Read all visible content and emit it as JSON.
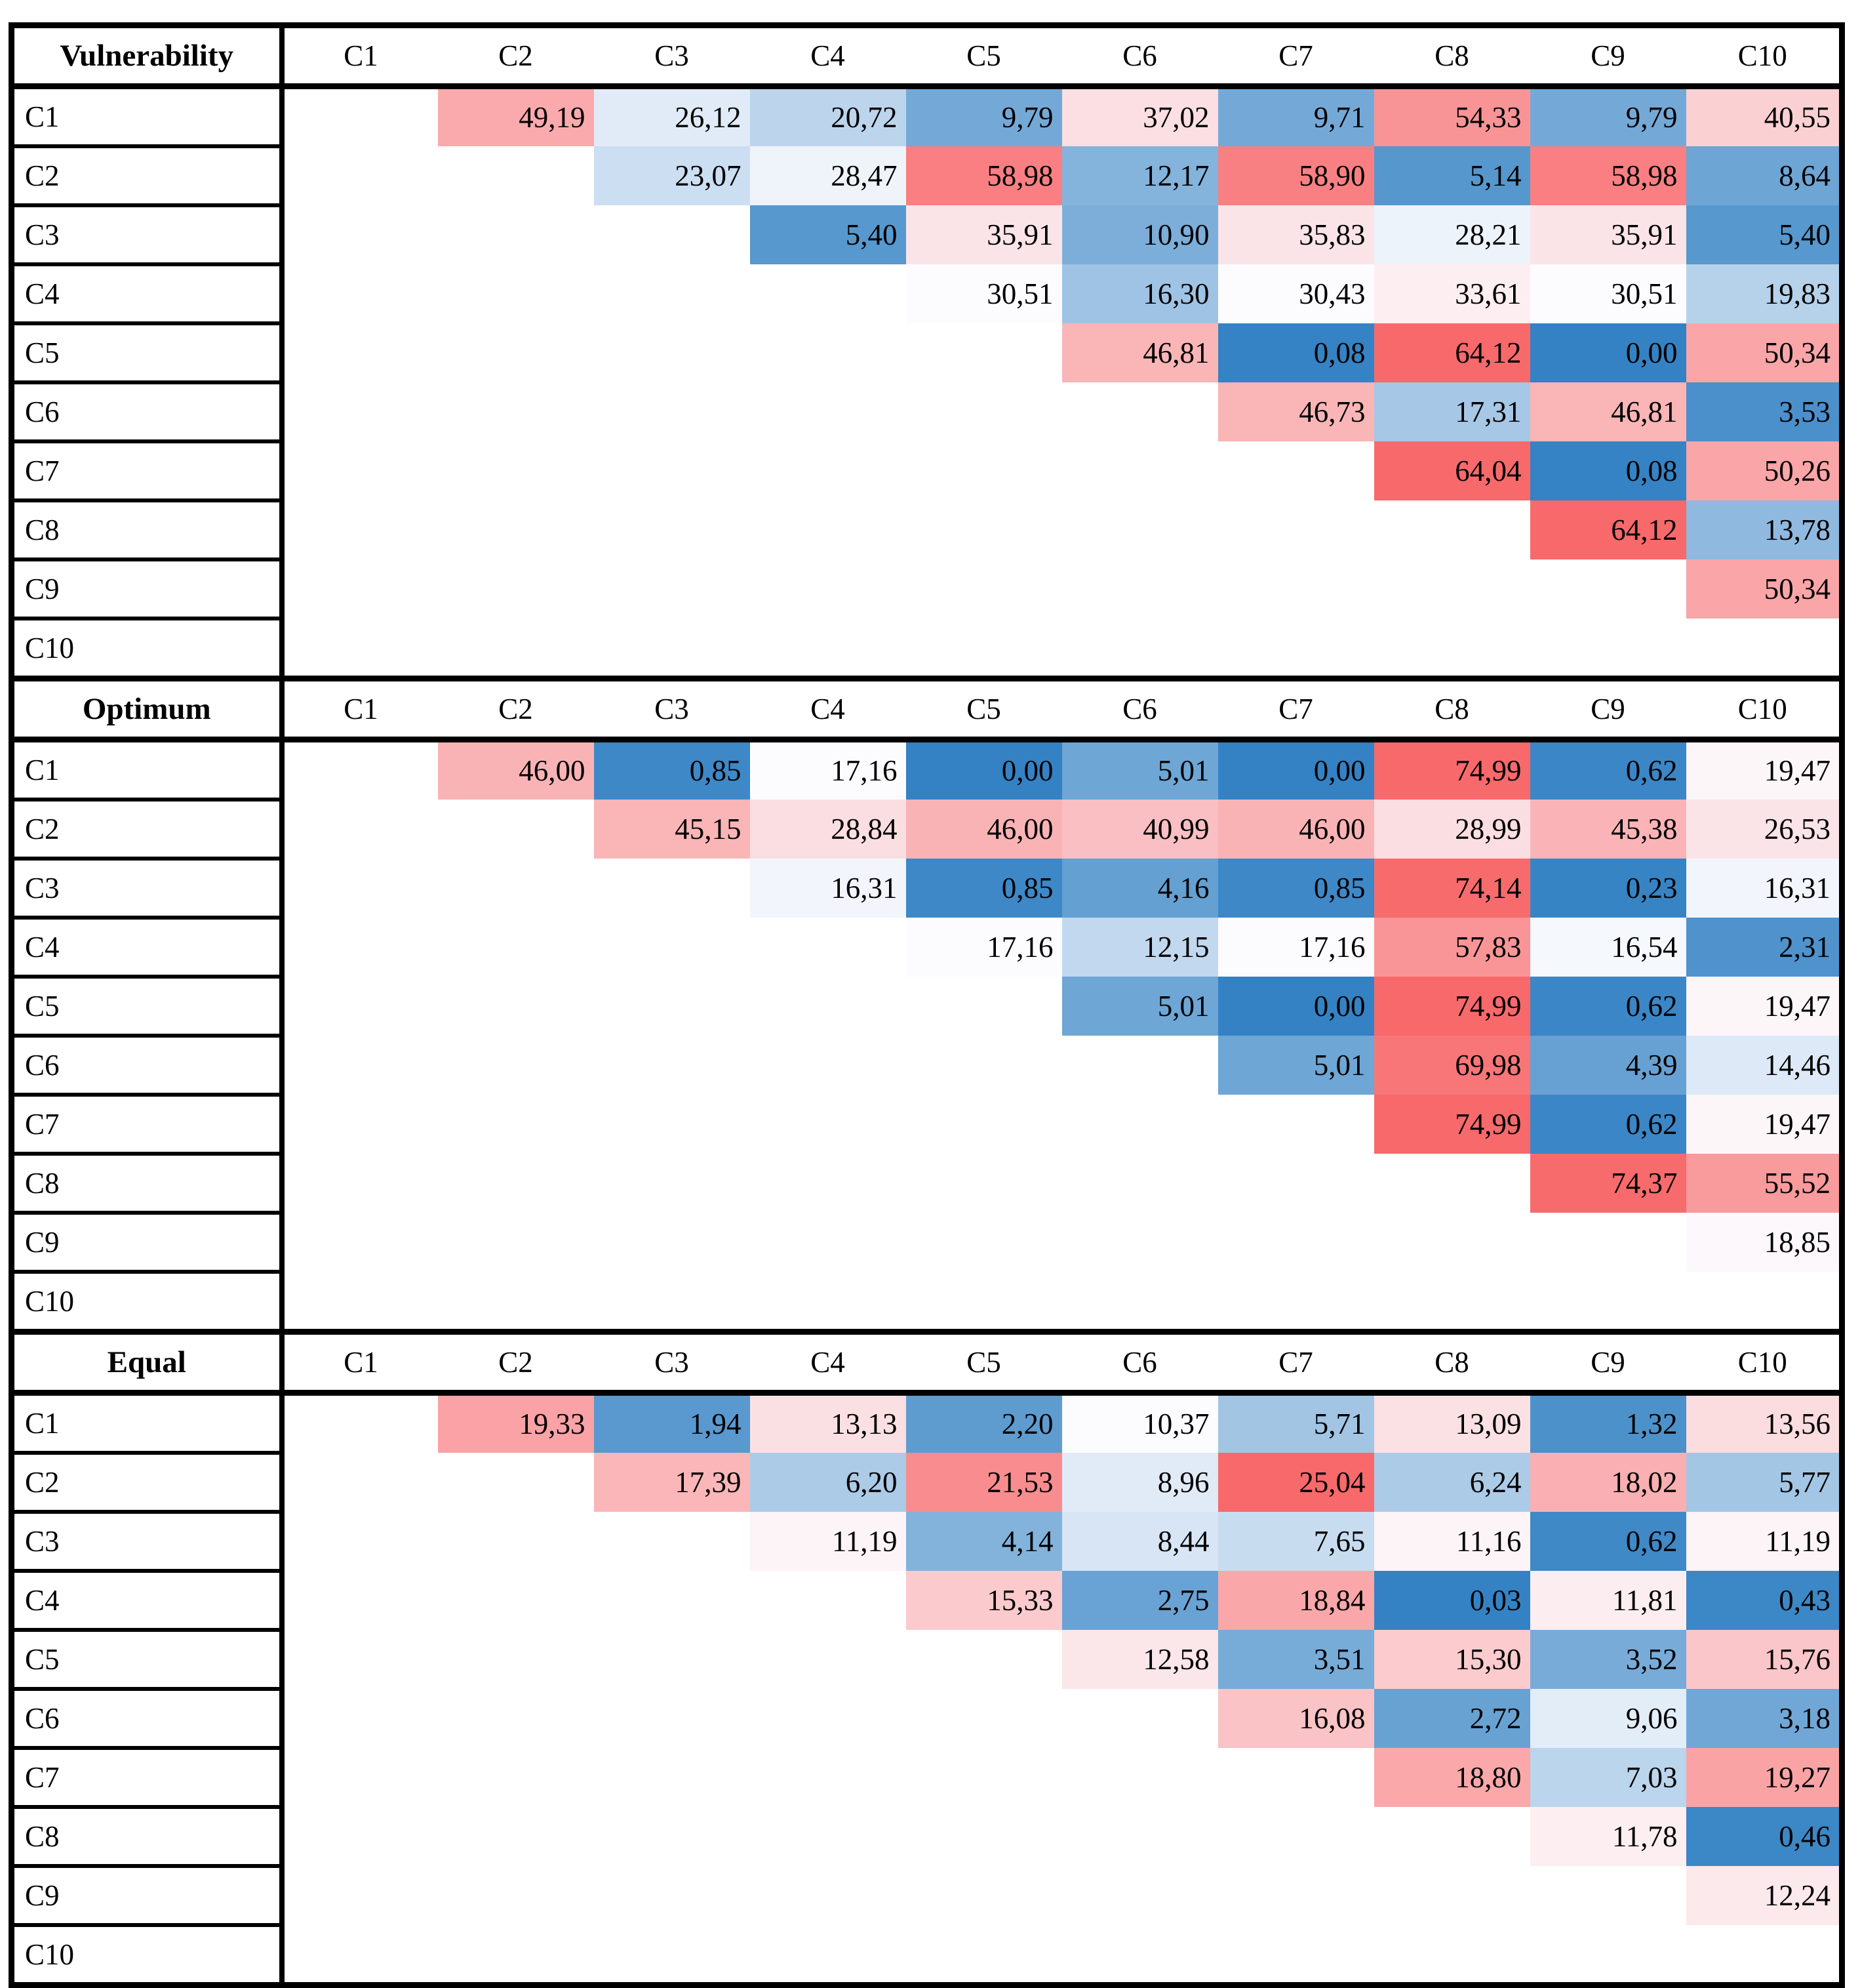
{
  "colors": {
    "scale_min_blue": "#3482C4",
    "scale_mid_white": "#FCFCFF",
    "scale_max_red": "#F8696B",
    "border_black": "#000000",
    "background": "#FFFFFF",
    "text": "#000000"
  },
  "format": {
    "decimal_separator": ",",
    "decimals": 2
  },
  "chart_data": {
    "type": "heatmap",
    "categories": [
      "C1",
      "C2",
      "C3",
      "C4",
      "C5",
      "C6",
      "C7",
      "C8",
      "C9",
      "C10"
    ],
    "row_labels": [
      "C1",
      "C2",
      "C3",
      "C4",
      "C5",
      "C6",
      "C7",
      "C8",
      "C9",
      "C10"
    ],
    "colorscale_note": "3-color scale per section: min=blue, 50th percentile=white, max=red",
    "legend_position": "none",
    "grid": false,
    "sections": [
      {
        "title": "Vulnerability",
        "matrix": [
          [
            null,
            49.19,
            26.12,
            20.72,
            9.79,
            37.02,
            9.71,
            54.33,
            9.79,
            40.55
          ],
          [
            null,
            null,
            23.07,
            28.47,
            58.98,
            12.17,
            58.9,
            5.14,
            58.98,
            8.64
          ],
          [
            null,
            null,
            null,
            5.4,
            35.91,
            10.9,
            35.83,
            28.21,
            35.91,
            5.4
          ],
          [
            null,
            null,
            null,
            null,
            30.51,
            16.3,
            30.43,
            33.61,
            30.51,
            19.83
          ],
          [
            null,
            null,
            null,
            null,
            null,
            46.81,
            0.08,
            64.12,
            0.0,
            50.34
          ],
          [
            null,
            null,
            null,
            null,
            null,
            null,
            46.73,
            17.31,
            46.81,
            3.53
          ],
          [
            null,
            null,
            null,
            null,
            null,
            null,
            null,
            64.04,
            0.08,
            50.26
          ],
          [
            null,
            null,
            null,
            null,
            null,
            null,
            null,
            null,
            64.12,
            13.78
          ],
          [
            null,
            null,
            null,
            null,
            null,
            null,
            null,
            null,
            null,
            50.34
          ],
          [
            null,
            null,
            null,
            null,
            null,
            null,
            null,
            null,
            null,
            null
          ]
        ]
      },
      {
        "title": "Optimum",
        "matrix": [
          [
            null,
            46.0,
            0.85,
            17.16,
            0.0,
            5.01,
            0.0,
            74.99,
            0.62,
            19.47
          ],
          [
            null,
            null,
            45.15,
            28.84,
            46.0,
            40.99,
            46.0,
            28.99,
            45.38,
            26.53
          ],
          [
            null,
            null,
            null,
            16.31,
            0.85,
            4.16,
            0.85,
            74.14,
            0.23,
            16.31
          ],
          [
            null,
            null,
            null,
            null,
            17.16,
            12.15,
            17.16,
            57.83,
            16.54,
            2.31
          ],
          [
            null,
            null,
            null,
            null,
            null,
            5.01,
            0.0,
            74.99,
            0.62,
            19.47
          ],
          [
            null,
            null,
            null,
            null,
            null,
            null,
            5.01,
            69.98,
            4.39,
            14.46
          ],
          [
            null,
            null,
            null,
            null,
            null,
            null,
            null,
            74.99,
            0.62,
            19.47
          ],
          [
            null,
            null,
            null,
            null,
            null,
            null,
            null,
            null,
            74.37,
            55.52
          ],
          [
            null,
            null,
            null,
            null,
            null,
            null,
            null,
            null,
            null,
            18.85
          ],
          [
            null,
            null,
            null,
            null,
            null,
            null,
            null,
            null,
            null,
            null
          ]
        ]
      },
      {
        "title": "Equal",
        "matrix": [
          [
            null,
            19.33,
            1.94,
            13.13,
            2.2,
            10.37,
            5.71,
            13.09,
            1.32,
            13.56
          ],
          [
            null,
            null,
            17.39,
            6.2,
            21.53,
            8.96,
            25.04,
            6.24,
            18.02,
            5.77
          ],
          [
            null,
            null,
            null,
            11.19,
            4.14,
            8.44,
            7.65,
            11.16,
            0.62,
            11.19
          ],
          [
            null,
            null,
            null,
            null,
            15.33,
            2.75,
            18.84,
            0.03,
            11.81,
            0.43
          ],
          [
            null,
            null,
            null,
            null,
            null,
            12.58,
            3.51,
            15.3,
            3.52,
            15.76
          ],
          [
            null,
            null,
            null,
            null,
            null,
            null,
            16.08,
            2.72,
            9.06,
            3.18
          ],
          [
            null,
            null,
            null,
            null,
            null,
            null,
            null,
            18.8,
            7.03,
            19.27
          ],
          [
            null,
            null,
            null,
            null,
            null,
            null,
            null,
            null,
            11.78,
            0.46
          ],
          [
            null,
            null,
            null,
            null,
            null,
            null,
            null,
            null,
            null,
            12.24
          ],
          [
            null,
            null,
            null,
            null,
            null,
            null,
            null,
            null,
            null,
            null
          ]
        ]
      }
    ]
  }
}
